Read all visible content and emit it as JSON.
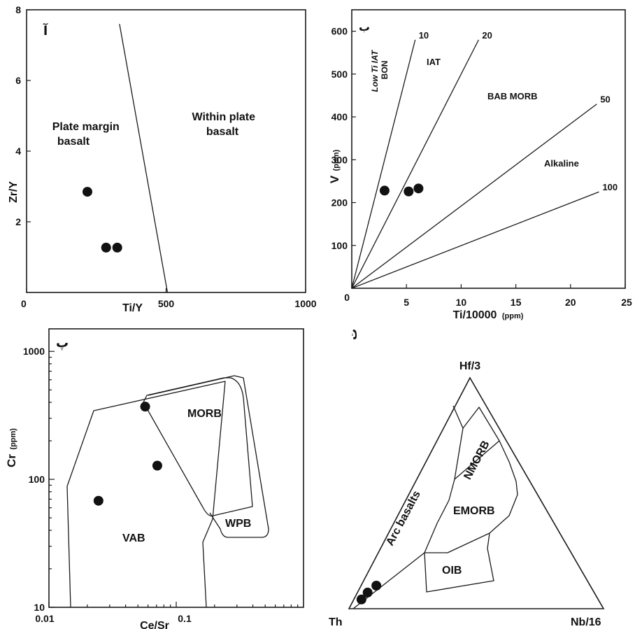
{
  "chart_data": [
    {
      "type": "scatter",
      "panel_label": "آ",
      "xlabel": "Ti/Y",
      "ylabel": "Zr/Y",
      "xlim": [
        0,
        1000
      ],
      "ylim": [
        0,
        8
      ],
      "x_ticks": [
        "0",
        "500",
        "1000"
      ],
      "x_tick_values": [
        0,
        500,
        1000
      ],
      "y_ticks": [
        "2",
        "4",
        "6",
        "8"
      ],
      "y_tick_values": [
        2,
        4,
        6,
        8
      ],
      "boundary": [
        [
          333,
          7.6
        ],
        [
          505,
          0
        ]
      ],
      "fields": [
        "Plate margin\nbasalt",
        "Within plate\nbasalt"
      ],
      "points": [
        [
          218,
          2.85
        ],
        [
          285,
          1.27
        ],
        [
          325,
          1.27
        ]
      ]
    },
    {
      "type": "scatter",
      "panel_label": "ب",
      "xlabel": "Ti/10000",
      "xlabel_unit": "(ppm)",
      "ylabel": "V",
      "ylabel_unit": "(ppm)",
      "xlim": [
        0,
        25
      ],
      "ylim": [
        0,
        650
      ],
      "x_ticks": [
        "0",
        "5",
        "10",
        "15",
        "20",
        "25"
      ],
      "x_tick_values": [
        0,
        5,
        10,
        15,
        20,
        25
      ],
      "y_ticks": [
        "100",
        "200",
        "300",
        "400",
        "500",
        "600"
      ],
      "y_tick_values": [
        100,
        200,
        300,
        400,
        500,
        600
      ],
      "ratio_lines": [
        {
          "label": "10",
          "end": [
            5.8,
            580
          ]
        },
        {
          "label": "20",
          "end": [
            11.6,
            580
          ]
        },
        {
          "label": "50",
          "end": [
            22.4,
            430
          ]
        },
        {
          "label": "100",
          "end": [
            22.6,
            225
          ]
        }
      ],
      "fields": [
        "Low Ti IAT\nBON",
        "IAT",
        "BAB MORB",
        "Alkaline"
      ],
      "points": [
        [
          3.0,
          228
        ],
        [
          5.2,
          226
        ],
        [
          6.1,
          233
        ]
      ]
    },
    {
      "type": "scatter",
      "panel_label": "پ",
      "xlabel": "Ce/Sr",
      "ylabel": "Cr",
      "ylabel_unit": "(ppm)",
      "xscale": "log",
      "yscale": "log",
      "xlim": [
        0.01,
        1
      ],
      "ylim": [
        10,
        1500
      ],
      "x_ticks": [
        "0.01",
        "0.1"
      ],
      "x_tick_values": [
        0.01,
        0.1
      ],
      "y_ticks": [
        "10",
        "100",
        "1000"
      ],
      "y_tick_values": [
        10,
        100,
        1000
      ],
      "fields": [
        "MORB",
        "VAB",
        "WPB"
      ],
      "points": [
        [
          0.0245,
          68
        ],
        [
          0.057,
          370
        ],
        [
          0.071,
          128
        ]
      ]
    },
    {
      "type": "scatter",
      "subtype": "ternary",
      "panel_label": "ت",
      "apex_top": "Hf/3",
      "apex_left": "Th",
      "apex_right": "Nb/16",
      "fields": [
        "Arc basalts",
        "NMORB",
        "EMORB",
        "OIB"
      ],
      "points": [
        [
          0.93,
          0.04,
          0.03
        ],
        [
          0.89,
          0.07,
          0.04
        ],
        [
          0.84,
          0.1,
          0.06
        ]
      ]
    }
  ]
}
